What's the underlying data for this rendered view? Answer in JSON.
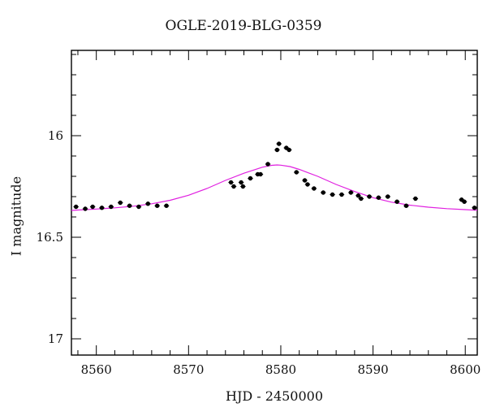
{
  "chart_data": {
    "type": "scatter",
    "title": "OGLE-2019-BLG-0359",
    "xlabel": "HJD - 2450000",
    "ylabel": "I magnitude",
    "xlim": [
      8557.3,
      8601.3
    ],
    "ylim": [
      17.08,
      15.58
    ],
    "y_inverted": true,
    "x_ticks": [
      8560,
      8570,
      8580,
      8590,
      8600
    ],
    "y_ticks": [
      16,
      16.5,
      17
    ],
    "x_tick_labels": [
      "8560",
      "8570",
      "8580",
      "8590",
      "8600"
    ],
    "y_tick_labels": [
      "16",
      "16.5",
      "17"
    ],
    "grid": false,
    "series": [
      {
        "kind": "points",
        "color": "#000000",
        "x": [
          8557.8,
          8558.8,
          8559.6,
          8560.6,
          8561.6,
          8562.6,
          8563.6,
          8564.6,
          8565.6,
          8566.6,
          8567.6,
          8574.6,
          8574.9,
          8575.7,
          8575.9,
          8576.7,
          8577.5,
          8577.8,
          8578.6,
          8579.6,
          8579.8,
          8580.6,
          8580.9,
          8581.7,
          8582.6,
          8582.9,
          8583.6,
          8584.6,
          8585.6,
          8586.6,
          8587.6,
          8588.4,
          8588.7,
          8589.6,
          8590.6,
          8591.6,
          8592.6,
          8593.6,
          8594.6,
          8599.6,
          8599.9,
          8601.0
        ],
        "y": [
          16.35,
          16.36,
          16.35,
          16.355,
          16.35,
          16.33,
          16.345,
          16.35,
          16.335,
          16.345,
          16.345,
          16.23,
          16.25,
          16.23,
          16.25,
          16.21,
          16.19,
          16.19,
          16.14,
          16.07,
          16.04,
          16.06,
          16.07,
          16.18,
          16.22,
          16.24,
          16.26,
          16.28,
          16.29,
          16.29,
          16.28,
          16.295,
          16.31,
          16.3,
          16.305,
          16.3,
          16.325,
          16.345,
          16.31,
          16.315,
          16.325,
          16.355
        ]
      },
      {
        "kind": "model",
        "color": "#e020e0",
        "x": [
          8557.3,
          8558,
          8560,
          8562,
          8564,
          8566,
          8568,
          8570,
          8572,
          8574,
          8576,
          8578,
          8579,
          8579.6,
          8580,
          8581,
          8582,
          8584,
          8586,
          8588,
          8590,
          8592,
          8594,
          8596,
          8598,
          8600,
          8601.3
        ],
        "y": [
          16.368,
          16.366,
          16.361,
          16.355,
          16.347,
          16.335,
          16.318,
          16.293,
          16.26,
          16.22,
          16.185,
          16.155,
          16.146,
          16.144,
          16.145,
          16.152,
          16.166,
          16.2,
          16.24,
          16.275,
          16.305,
          16.327,
          16.342,
          16.352,
          16.359,
          16.364,
          16.367
        ]
      }
    ]
  }
}
